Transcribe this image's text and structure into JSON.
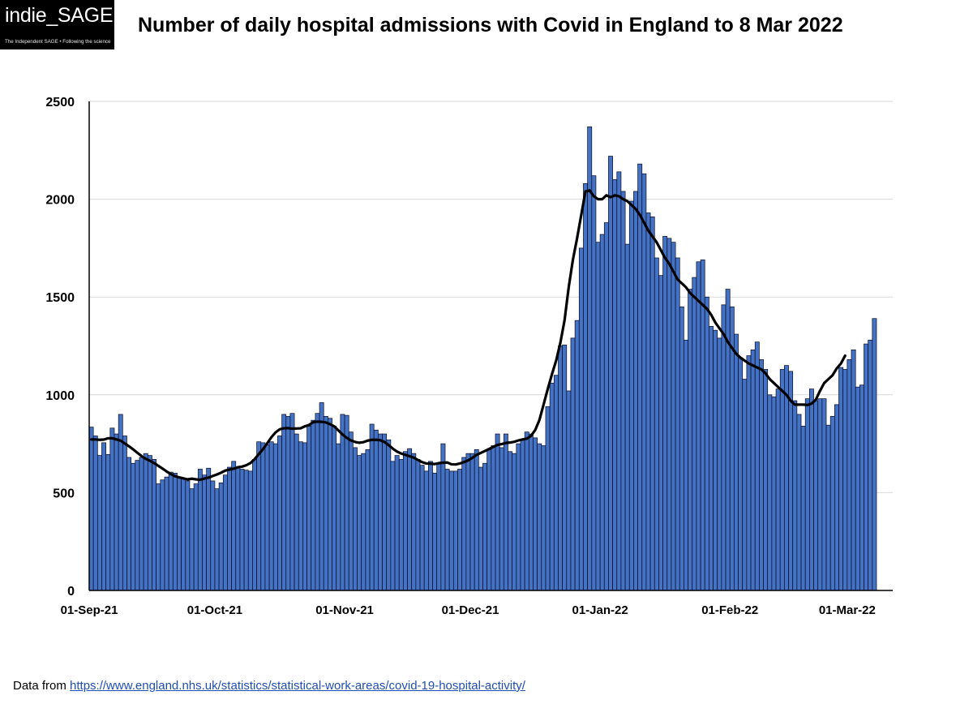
{
  "logo": {
    "text": "indie_SAGE",
    "tagline": "The Independent SAGE • Following the science"
  },
  "title": "Number of daily hospital admissions with Covid in England to 8 Mar 2022",
  "source": {
    "prefix": "Data from ",
    "url": "https://www.england.nhs.uk/statistics/statistical-work-areas/covid-19-hospital-activity/"
  },
  "colors": {
    "bar_fill": "#4472c4",
    "bar_edge": "#0a0a1e",
    "average_line": "#000000",
    "grid": "#d9d9d9"
  },
  "chart_data": {
    "type": "bar",
    "x_start": "2021-09-01",
    "x_end": "2022-03-08",
    "ylim": [
      0,
      2500
    ],
    "yticks": [
      0,
      500,
      1000,
      1500,
      2000,
      2500
    ],
    "ytick_labels": [
      "0",
      "500",
      "1000",
      "1500",
      "2000",
      "2500"
    ],
    "xtick_labels": [
      "01-Sep-21",
      "01-Oct-21",
      "01-Nov-21",
      "01-Dec-21",
      "01-Jan-22",
      "01-Feb-22",
      "01-Mar-22"
    ],
    "grid": true,
    "series": [
      {
        "kind": "bar",
        "values": [
          835,
          790,
          690,
          755,
          695,
          830,
          800,
          900,
          790,
          680,
          650,
          665,
          680,
          700,
          690,
          670,
          545,
          565,
          580,
          605,
          600,
          580,
          570,
          560,
          520,
          545,
          620,
          590,
          625,
          560,
          520,
          550,
          590,
          630,
          660,
          630,
          620,
          615,
          610,
          670,
          760,
          755,
          745,
          760,
          750,
          790,
          900,
          890,
          905,
          800,
          760,
          755,
          840,
          870,
          905,
          960,
          890,
          880,
          840,
          750,
          900,
          895,
          810,
          730,
          690,
          700,
          720,
          850,
          820,
          800,
          800,
          770,
          660,
          690,
          670,
          710,
          725,
          700,
          670,
          640,
          610,
          660,
          600,
          650,
          750,
          620,
          610,
          610,
          620,
          680,
          700,
          700,
          720,
          630,
          650,
          720,
          740,
          800,
          730,
          800,
          710,
          700,
          750,
          770,
          810,
          800,
          780,
          750,
          740,
          940,
          1060,
          1100,
          1250,
          1255,
          1020,
          1290,
          1380,
          1750,
          2080,
          2370,
          2120,
          1780,
          1820,
          1880,
          2220,
          2100,
          2140,
          2040,
          1770,
          1990,
          2040,
          2180,
          2130,
          1930,
          1910,
          1700,
          1610,
          1810,
          1800,
          1780,
          1700,
          1450,
          1280,
          1540,
          1600,
          1680,
          1690,
          1500,
          1350,
          1330,
          1290,
          1460,
          1540,
          1450,
          1310,
          1190,
          1080,
          1200,
          1230,
          1270,
          1180,
          1130,
          1000,
          990,
          1030,
          1130,
          1150,
          1120,
          970,
          900,
          840,
          980,
          1030,
          970,
          980,
          980,
          845,
          890,
          950,
          1140,
          1130,
          1180,
          1230,
          1040,
          1050,
          1260,
          1280,
          1390
        ]
      },
      {
        "kind": "line",
        "values": [
          772,
          772,
          770,
          771,
          778,
          778,
          772,
          766,
          751,
          737,
          721,
          704,
          687,
          673,
          663,
          651,
          637,
          623,
          608,
          595,
          584,
          578,
          573,
          568,
          571,
          568,
          566,
          572,
          577,
          585,
          593,
          602,
          613,
          618,
          622,
          630,
          633,
          640,
          651,
          671,
          697,
          722,
          752,
          783,
          808,
          824,
          829,
          830,
          827,
          828,
          829,
          839,
          846,
          860,
          863,
          862,
          859,
          850,
          839,
          818,
          797,
          780,
          767,
          759,
          755,
          758,
          766,
          770,
          770,
          768,
          759,
          743,
          725,
          710,
          700,
          693,
          686,
          679,
          667,
          656,
          649,
          648,
          646,
          651,
          653,
          654,
          645,
          644,
          649,
          656,
          665,
          678,
          693,
          703,
          713,
          723,
          734,
          744,
          748,
          754,
          756,
          760,
          767,
          772,
          776,
          790,
          820,
          871,
          950,
          1030,
          1105,
          1175,
          1265,
          1380,
          1550,
          1690,
          1800,
          1920,
          2040,
          2045,
          2015,
          2000,
          2000,
          2020,
          2010,
          2020,
          2015,
          2000,
          1990,
          1970,
          1950,
          1920,
          1880,
          1840,
          1810,
          1780,
          1740,
          1700,
          1670,
          1630,
          1590,
          1570,
          1550,
          1520,
          1500,
          1480,
          1460,
          1440,
          1410,
          1370,
          1340,
          1310,
          1270,
          1240,
          1210,
          1190,
          1175,
          1160,
          1150,
          1140,
          1130,
          1110,
          1080,
          1060,
          1040,
          1020,
          1000,
          970,
          950,
          950,
          950,
          948,
          955,
          975,
          1020,
          1060,
          1080,
          1100,
          1135,
          1160,
          1200
        ]
      }
    ]
  }
}
